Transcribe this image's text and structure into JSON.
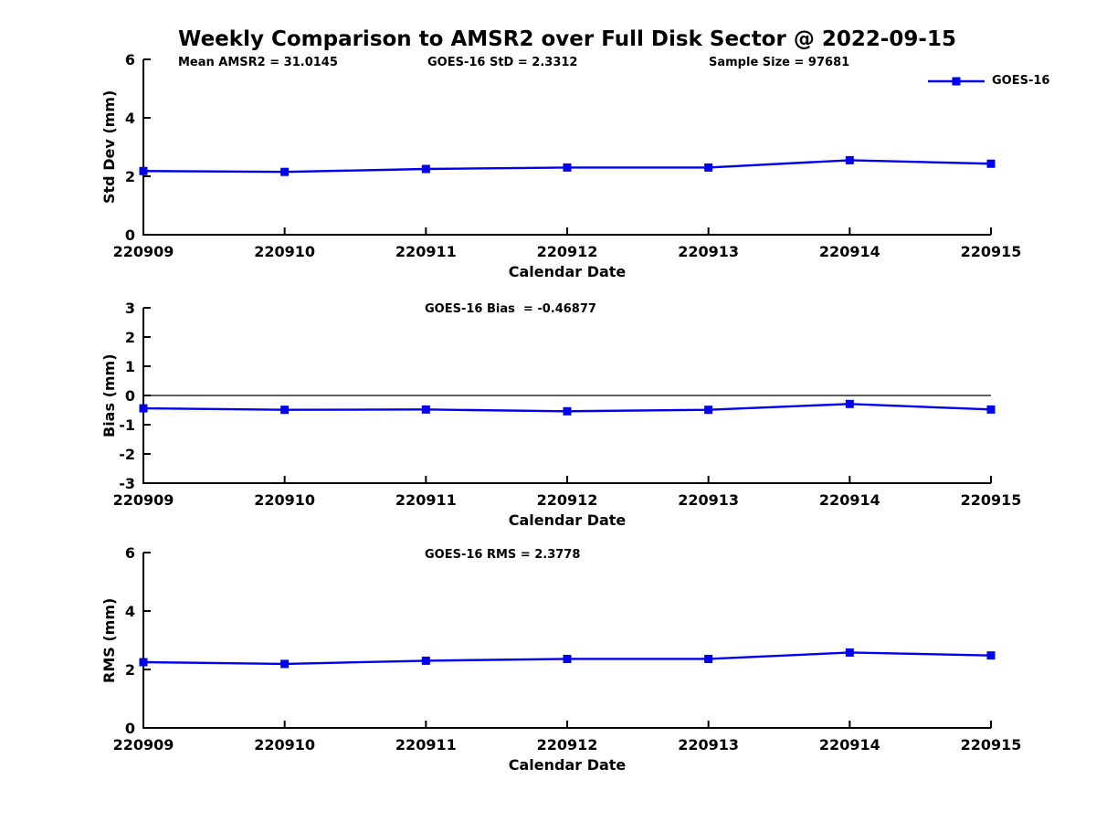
{
  "figure": {
    "title": "Weekly Comparison to AMSR2 over Full Disk Sector @ 2022-09-15"
  },
  "colors": {
    "line": "#0000EE",
    "axis": "#000000",
    "text": "#000000",
    "background": "#ffffff"
  },
  "legend": {
    "label": "GOES-16",
    "position": "top-right",
    "marker": "square"
  },
  "chart_data": [
    {
      "type": "line",
      "name": "std-dev",
      "xlabel": "Calendar Date",
      "ylabel": "Std Dev (mm)",
      "categories": [
        "220909",
        "220910",
        "220911",
        "220912",
        "220913",
        "220914",
        "220915"
      ],
      "series": [
        {
          "name": "GOES-16",
          "values": [
            2.18,
            2.15,
            2.25,
            2.3,
            2.3,
            2.55,
            2.43
          ]
        }
      ],
      "ylim": [
        0,
        6
      ],
      "yticks": [
        0,
        2,
        4,
        6
      ],
      "grid": false,
      "zero_line": false,
      "annotations": [
        {
          "text": "Mean AMSR2 = 31.0145"
        },
        {
          "text": "GOES-16 StD = 2.3312"
        },
        {
          "text": "Sample Size = 97681"
        }
      ]
    },
    {
      "type": "line",
      "name": "bias",
      "xlabel": "Calendar Date",
      "ylabel": "Bias (mm)",
      "categories": [
        "220909",
        "220910",
        "220911",
        "220912",
        "220913",
        "220914",
        "220915"
      ],
      "series": [
        {
          "name": "GOES-16",
          "values": [
            -0.44,
            -0.49,
            -0.48,
            -0.54,
            -0.49,
            -0.29,
            -0.48
          ]
        }
      ],
      "ylim": [
        -3,
        3
      ],
      "yticks": [
        3,
        2,
        1,
        0,
        -1,
        -2,
        -3
      ],
      "grid": false,
      "zero_line": true,
      "annotations": [
        {
          "text": "GOES-16 Bias  = -0.46877"
        }
      ]
    },
    {
      "type": "line",
      "name": "rms",
      "xlabel": "Calendar Date",
      "ylabel": "RMS (mm)",
      "categories": [
        "220909",
        "220910",
        "220911",
        "220912",
        "220913",
        "220914",
        "220915"
      ],
      "series": [
        {
          "name": "GOES-16",
          "values": [
            2.25,
            2.19,
            2.3,
            2.36,
            2.36,
            2.58,
            2.48
          ]
        }
      ],
      "ylim": [
        0,
        6
      ],
      "yticks": [
        0,
        2,
        4,
        6
      ],
      "grid": false,
      "zero_line": false,
      "annotations": [
        {
          "text": "GOES-16 RMS = 2.3778"
        }
      ]
    }
  ]
}
